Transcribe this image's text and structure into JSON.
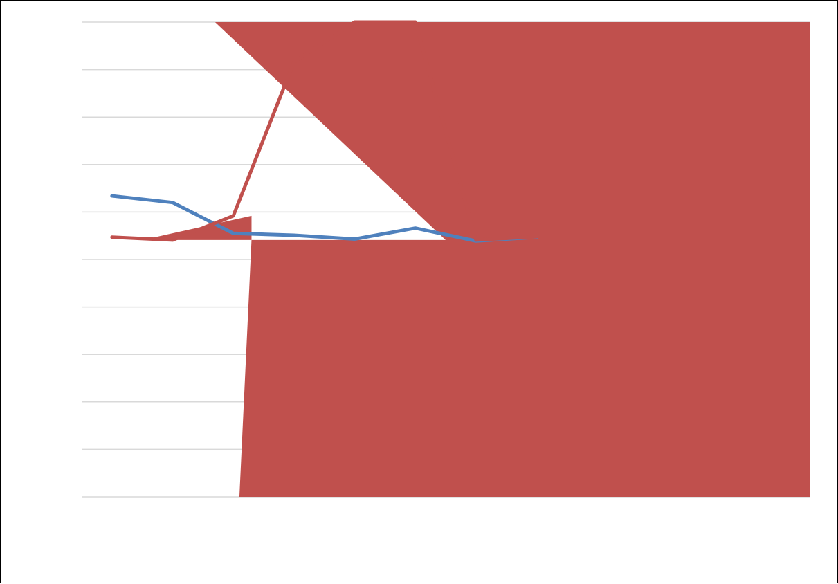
{
  "chart_data": {
    "type": "line",
    "title": "",
    "xlabel": "",
    "ylabel": "",
    "grid": true,
    "legend": "none",
    "gridline_count": 11,
    "colors": {
      "background": "#ffffff",
      "gridline": "#d9d9d9",
      "border": "#000000",
      "series_1": "#4f81bd",
      "series_2": "#c0504d"
    },
    "series": [
      {
        "key": "series_1",
        "values": [
          0.634,
          0.62,
          0.555,
          0.551,
          0.543,
          0.566,
          0.539,
          0.547
        ]
      },
      {
        "key": "series_2",
        "values": [
          0.547,
          0.541,
          0.592,
          0.916,
          1.05,
          1.05,
          0.541,
          0.548
        ]
      }
    ],
    "overlay_shapes": [
      {
        "key": "series_2",
        "polygons": [
          [
            [
              2.2,
              1.0
            ],
            [
              12.0,
              1.0
            ],
            [
              12.0,
              0.0
            ],
            [
              2.6,
              0.0
            ],
            [
              2.8,
              0.541
            ],
            [
              6.0,
              0.541
            ]
          ],
          [
            [
              1.0,
              0.541
            ],
            [
              2.8,
              0.541
            ],
            [
              2.8,
              0.592
            ]
          ]
        ]
      }
    ]
  }
}
